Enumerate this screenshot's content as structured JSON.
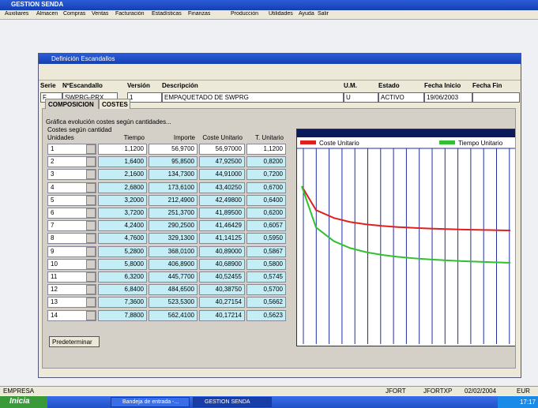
{
  "app": {
    "title": "GESTION SENDA",
    "menu": [
      "Auxiliares",
      "Almacen",
      "Compras",
      "Ventas",
      "Facturación",
      "Estadísticas",
      "Finanzas",
      "Producción",
      "Utilidades",
      "Ayuda",
      "Salir"
    ]
  },
  "window": {
    "title": "Definición Escandallos",
    "fields": [
      {
        "label": "Serie",
        "value": "F"
      },
      {
        "label": "NºEscandallo",
        "value": "SWPRG-PRX"
      },
      {
        "label": "Versión",
        "value": "1"
      },
      {
        "label": "Descripción",
        "value": "EMPAQUETADO DE SWPRG"
      },
      {
        "label": "U.M.",
        "value": "U"
      },
      {
        "label": "Estado",
        "value": "ACTIVO"
      },
      {
        "label": "Fecha Inicio",
        "value": "19/06/2003"
      },
      {
        "label": "Fecha Fin"
      }
    ],
    "tabs": [
      "COMPOSICION",
      "COSTES"
    ],
    "group_title": "Gráfica evolución costes según cantidades...",
    "subgroup_title": "Costes según cantidad",
    "table": {
      "columns": [
        "Unidades",
        "Tiempo",
        "Importe",
        "Coste Unitario",
        "T. Unitario"
      ],
      "rows": [
        [
          "1",
          "1,1200",
          "56,9700",
          "56,97000",
          "1,1200"
        ],
        [
          "2",
          "1,6400",
          "95,8500",
          "47,92500",
          "0,8200"
        ],
        [
          "3",
          "2,1600",
          "134,7300",
          "44,91000",
          "0,7200"
        ],
        [
          "4",
          "2,6800",
          "173,6100",
          "43,40250",
          "0,6700"
        ],
        [
          "5",
          "3,2000",
          "212,4900",
          "42,49800",
          "0,6400"
        ],
        [
          "6",
          "3,7200",
          "251,3700",
          "41,89500",
          "0,6200"
        ],
        [
          "7",
          "4,2400",
          "290,2500",
          "41,46429",
          "0,6057"
        ],
        [
          "8",
          "4,7600",
          "329,1300",
          "41,14125",
          "0,5950"
        ],
        [
          "9",
          "5,2800",
          "368,0100",
          "40,89000",
          "0,5867"
        ],
        [
          "10",
          "5,8000",
          "406,8900",
          "40,68900",
          "0,5800"
        ],
        [
          "11",
          "6,3200",
          "445,7700",
          "40,52455",
          "0,5745"
        ],
        [
          "12",
          "6,8400",
          "484,6500",
          "40,38750",
          "0,5700"
        ],
        [
          "13",
          "7,3600",
          "523,5300",
          "40,27154",
          "0,5662"
        ],
        [
          "14",
          "7,8800",
          "562,4100",
          "40,17214",
          "0,5623"
        ]
      ]
    },
    "button": "Predeterminar",
    "chart": {
      "legend": [
        {
          "name": "Coste Unitario",
          "color": "#e02020",
          "column": 3
        },
        {
          "name": "Tiempo Unitario",
          "color": "#30c030",
          "column": 4
        }
      ]
    }
  },
  "status_bar": [
    "EMPRESA",
    "JFORT",
    "JFORTXP",
    "02/02/2004",
    "EUR"
  ],
  "taskbar": {
    "start": "Inicia",
    "items": [
      "Bandeja de entrada -...",
      "GESTION SENDA"
    ],
    "clock": "17:17"
  }
}
